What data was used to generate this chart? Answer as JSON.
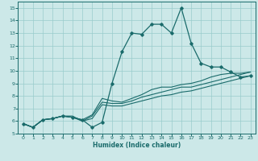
{
  "xlabel": "Humidex (Indice chaleur)",
  "bg_color": "#cce8e8",
  "grid_color": "#99cccc",
  "line_color": "#1a6b6b",
  "xlim": [
    -0.5,
    23.5
  ],
  "ylim": [
    5,
    15.5
  ],
  "xticks": [
    0,
    1,
    2,
    3,
    4,
    5,
    6,
    7,
    8,
    9,
    10,
    11,
    12,
    13,
    14,
    15,
    16,
    17,
    18,
    19,
    20,
    21,
    22,
    23
  ],
  "yticks": [
    5,
    6,
    7,
    8,
    9,
    10,
    11,
    12,
    13,
    14,
    15
  ],
  "series": [
    [
      5.8,
      5.5,
      6.1,
      6.2,
      6.4,
      6.3,
      6.1,
      5.5,
      5.9,
      9.0,
      11.5,
      13.0,
      12.9,
      13.7,
      13.7,
      13.0,
      15.0,
      12.2,
      10.6,
      10.3,
      10.3,
      9.9,
      9.5,
      9.6
    ],
    [
      5.8,
      5.5,
      6.1,
      6.2,
      6.4,
      6.3,
      6.1,
      6.5,
      7.8,
      7.6,
      7.5,
      7.8,
      8.1,
      8.5,
      8.7,
      8.7,
      8.9,
      9.0,
      9.2,
      9.5,
      9.7,
      9.8,
      9.8,
      9.9
    ],
    [
      5.8,
      5.5,
      6.1,
      6.2,
      6.4,
      6.3,
      6.0,
      6.4,
      7.5,
      7.4,
      7.4,
      7.6,
      7.9,
      8.1,
      8.3,
      8.5,
      8.7,
      8.7,
      8.9,
      9.1,
      9.3,
      9.5,
      9.7,
      9.9
    ],
    [
      5.8,
      5.5,
      6.1,
      6.2,
      6.4,
      6.4,
      6.0,
      6.2,
      7.3,
      7.2,
      7.2,
      7.4,
      7.6,
      7.8,
      8.0,
      8.1,
      8.3,
      8.4,
      8.6,
      8.8,
      9.0,
      9.2,
      9.4,
      9.6
    ]
  ]
}
